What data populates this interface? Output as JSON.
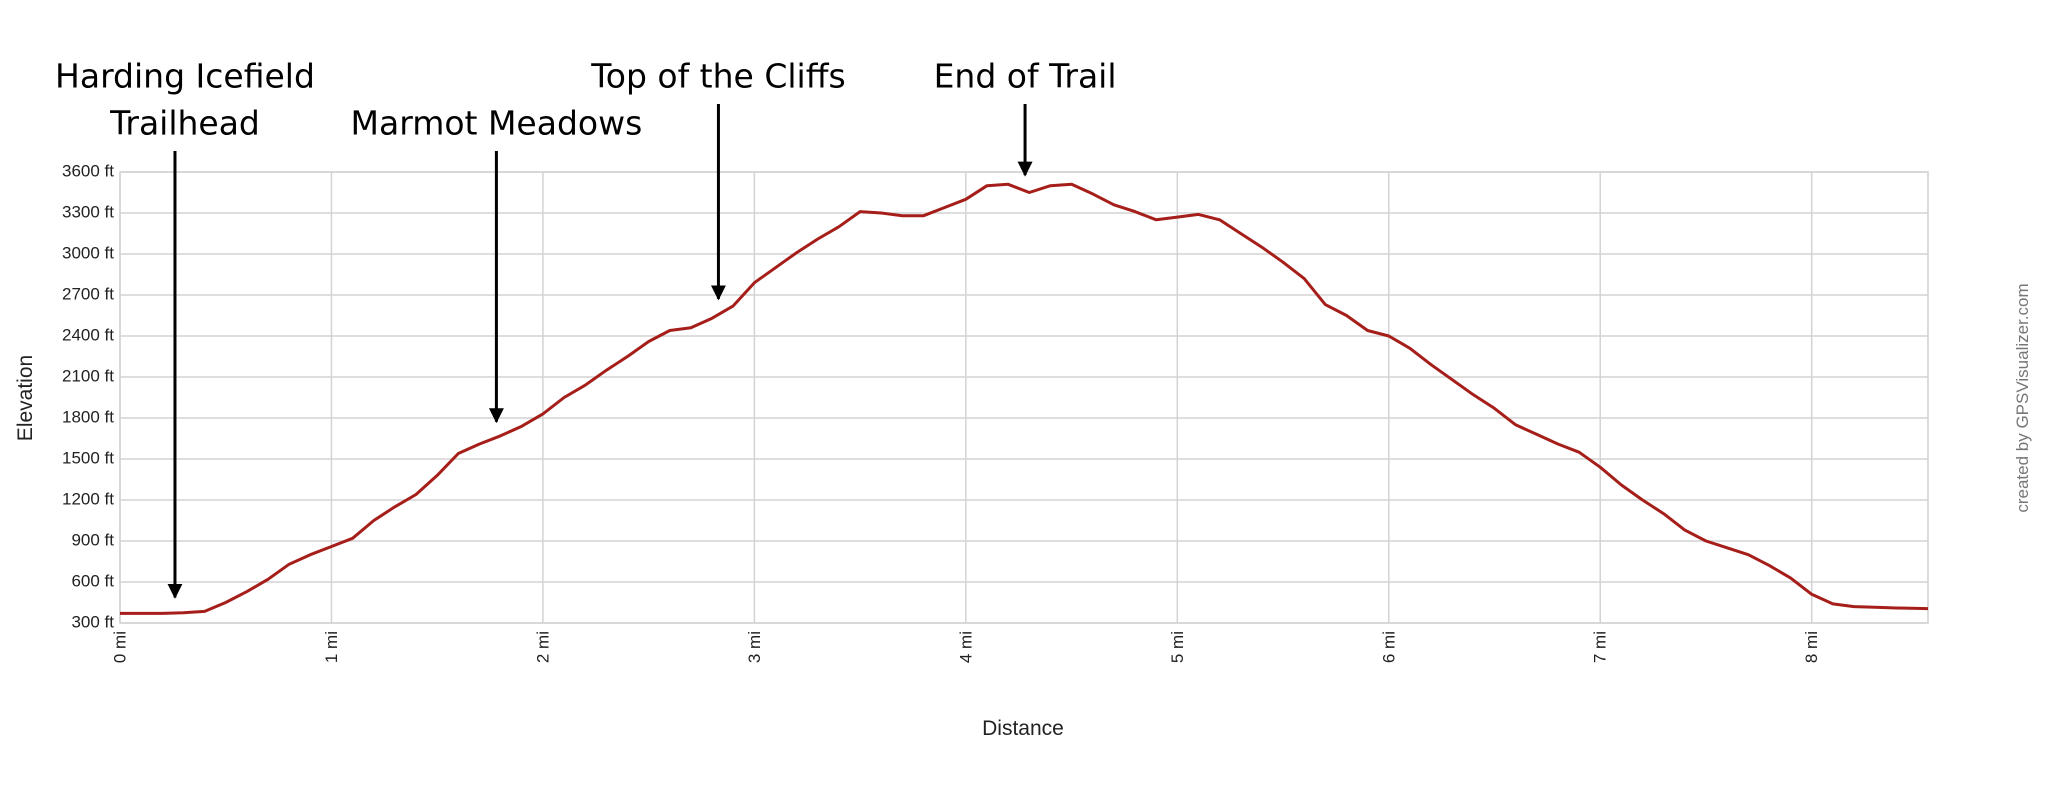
{
  "chart_data": {
    "type": "line",
    "x_label": "Distance",
    "y_label": "Elevation",
    "credit": "created by GPSVisualizer.com",
    "x": [
      0,
      0.1,
      0.2,
      0.3,
      0.4,
      0.5,
      0.6,
      0.7,
      0.8,
      0.9,
      1.0,
      1.1,
      1.2,
      1.3,
      1.4,
      1.5,
      1.6,
      1.7,
      1.8,
      1.9,
      2.0,
      2.1,
      2.2,
      2.3,
      2.4,
      2.5,
      2.6,
      2.7,
      2.8,
      2.9,
      3.0,
      3.1,
      3.2,
      3.3,
      3.4,
      3.5,
      3.6,
      3.7,
      3.8,
      3.9,
      4.0,
      4.1,
      4.2,
      4.3,
      4.4,
      4.5,
      4.6,
      4.7,
      4.8,
      4.9,
      5.0,
      5.1,
      5.2,
      5.3,
      5.4,
      5.5,
      5.6,
      5.7,
      5.8,
      5.9,
      6.0,
      6.1,
      6.2,
      6.3,
      6.4,
      6.5,
      6.6,
      6.7,
      6.8,
      6.9,
      7.0,
      7.1,
      7.2,
      7.3,
      7.4,
      7.5,
      7.6,
      7.7,
      7.8,
      7.9,
      8.0,
      8.1,
      8.2,
      8.3,
      8.4,
      8.55
    ],
    "series": [
      {
        "name": "Elevation",
        "color": "#a61e1a",
        "values": [
          370,
          370,
          370,
          375,
          385,
          450,
          530,
          620,
          730,
          800,
          860,
          920,
          1050,
          1150,
          1240,
          1380,
          1540,
          1610,
          1670,
          1740,
          1830,
          1950,
          2040,
          2150,
          2250,
          2360,
          2440,
          2460,
          2530,
          2620,
          2790,
          2900,
          3010,
          3110,
          3200,
          3310,
          3300,
          3280,
          3280,
          3340,
          3400,
          3500,
          3510,
          3450,
          3500,
          3510,
          3440,
          3360,
          3310,
          3250,
          3270,
          3290,
          3250,
          3150,
          3050,
          2940,
          2820,
          2630,
          2550,
          2440,
          2400,
          2310,
          2190,
          2080,
          1970,
          1870,
          1750,
          1680,
          1610,
          1550,
          1440,
          1310,
          1200,
          1100,
          980,
          900,
          850,
          800,
          720,
          630,
          510,
          440,
          420,
          415,
          410,
          405
        ]
      }
    ],
    "xlim": [
      0,
      8.55
    ],
    "ylim": [
      300,
      3600
    ],
    "xticks": [
      {
        "value": 0,
        "label": "0 mi"
      },
      {
        "value": 1,
        "label": "1 mi"
      },
      {
        "value": 2,
        "label": "2 mi"
      },
      {
        "value": 3,
        "label": "3 mi"
      },
      {
        "value": 4,
        "label": "4 mi"
      },
      {
        "value": 5,
        "label": "5 mi"
      },
      {
        "value": 6,
        "label": "6 mi"
      },
      {
        "value": 7,
        "label": "7 mi"
      },
      {
        "value": 8,
        "label": "8 mi"
      }
    ],
    "yticks": [
      {
        "value": 300,
        "label": "300 ft"
      },
      {
        "value": 600,
        "label": "600 ft"
      },
      {
        "value": 900,
        "label": "900 ft"
      },
      {
        "value": 1200,
        "label": "1200 ft"
      },
      {
        "value": 1500,
        "label": "1500 ft"
      },
      {
        "value": 1800,
        "label": "1800 ft"
      },
      {
        "value": 2100,
        "label": "2100 ft"
      },
      {
        "value": 2400,
        "label": "2400 ft"
      },
      {
        "value": 2700,
        "label": "2700 ft"
      },
      {
        "value": 3000,
        "label": "3000 ft"
      },
      {
        "value": 3300,
        "label": "3300 ft"
      },
      {
        "value": 3600,
        "label": "3600 ft"
      }
    ],
    "grid": true,
    "annotations": [
      {
        "lines": [
          "Harding Icefield",
          "Trailhead"
        ],
        "x": 0.26
      },
      {
        "lines": [
          "Marmot Meadows"
        ],
        "x": 1.78
      },
      {
        "lines": [
          "Top of the Cliffs"
        ],
        "x": 2.83
      },
      {
        "lines": [
          "End of Trail"
        ],
        "x": 4.28
      }
    ]
  }
}
